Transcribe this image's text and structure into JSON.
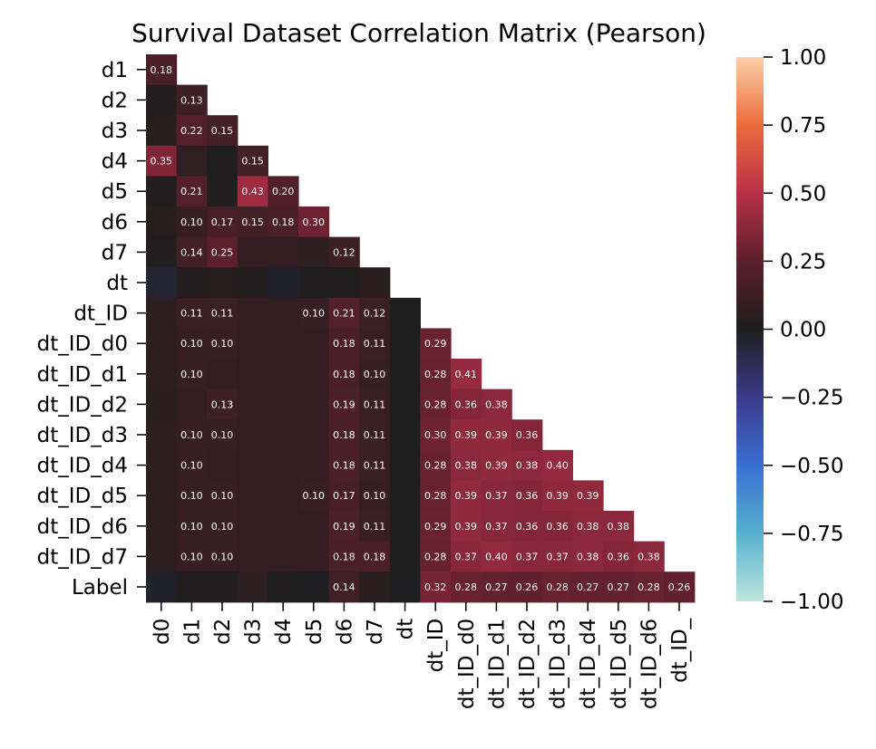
{
  "chart_data": {
    "type": "heatmap",
    "title": "Survival Dataset Correlation Matrix (Pearson)",
    "xlabel": "",
    "ylabel": "",
    "mask": "upper-triangle",
    "columns": [
      "d0",
      "d1",
      "d2",
      "d3",
      "d4",
      "d5",
      "d6",
      "d7",
      "dt",
      "dt_ID",
      "dt_ID_d0",
      "dt_ID_d1",
      "dt_ID_d2",
      "dt_ID_d3",
      "dt_ID_d4",
      "dt_ID_d5",
      "dt_ID_d6",
      "dt_ID_d7"
    ],
    "xtick_labels": [
      "d0",
      "d1",
      "d2",
      "d3",
      "d4",
      "d5",
      "d6",
      "d7",
      "dt",
      "dt_ID",
      "dt_ID_d0",
      "dt_ID_d1",
      "dt_ID_d2",
      "dt_ID_d3",
      "dt_ID_d4",
      "dt_ID_d5",
      "dt_ID_d6",
      "dt_ID_"
    ],
    "rows": [
      "d1",
      "d2",
      "d3",
      "d4",
      "d5",
      "d6",
      "d7",
      "dt",
      "dt_ID",
      "dt_ID_d0",
      "dt_ID_d1",
      "dt_ID_d2",
      "dt_ID_d3",
      "dt_ID_d4",
      "dt_ID_d5",
      "dt_ID_d6",
      "dt_ID_d7",
      "Label"
    ],
    "values": [
      [
        0.18
      ],
      [
        0.03,
        0.13
      ],
      [
        0.04,
        0.22,
        0.15
      ],
      [
        0.35,
        0.07,
        0.01,
        0.15
      ],
      [
        0.02,
        0.21,
        0.01,
        0.43,
        0.2
      ],
      [
        0.04,
        0.1,
        0.17,
        0.15,
        0.18,
        0.3
      ],
      [
        0.02,
        0.14,
        0.25,
        0.08,
        0.08,
        0.06,
        0.12
      ],
      [
        -0.05,
        0.03,
        0.04,
        0.03,
        -0.03,
        0.01,
        0.01,
        0.05
      ],
      [
        0.06,
        0.11,
        0.11,
        0.08,
        0.08,
        0.1,
        0.21,
        0.12,
        0.0
      ],
      [
        0.06,
        0.1,
        0.1,
        0.08,
        0.08,
        0.09,
        0.18,
        0.11,
        0.0,
        0.29
      ],
      [
        0.06,
        0.1,
        0.09,
        0.08,
        0.08,
        0.09,
        0.18,
        0.1,
        0.0,
        0.28,
        0.41
      ],
      [
        0.05,
        0.09,
        0.13,
        0.08,
        0.08,
        0.09,
        0.19,
        0.11,
        0.0,
        0.28,
        0.36,
        0.38
      ],
      [
        0.06,
        0.1,
        0.1,
        0.08,
        0.08,
        0.09,
        0.18,
        0.11,
        0.0,
        0.3,
        0.39,
        0.39,
        0.36
      ],
      [
        0.06,
        0.1,
        0.09,
        0.08,
        0.08,
        0.09,
        0.18,
        0.11,
        0.0,
        0.28,
        0.38,
        0.39,
        0.38,
        0.4
      ],
      [
        0.06,
        0.1,
        0.1,
        0.08,
        0.08,
        0.1,
        0.17,
        0.1,
        0.0,
        0.28,
        0.39,
        0.37,
        0.36,
        0.39,
        0.39
      ],
      [
        0.06,
        0.1,
        0.1,
        0.08,
        0.08,
        0.09,
        0.19,
        0.11,
        0.0,
        0.29,
        0.39,
        0.37,
        0.36,
        0.36,
        0.38,
        0.38
      ],
      [
        0.06,
        0.1,
        0.1,
        0.08,
        0.08,
        0.09,
        0.18,
        0.18,
        0.0,
        0.28,
        0.37,
        0.4,
        0.37,
        0.37,
        0.38,
        0.36,
        0.38
      ],
      [
        -0.03,
        0.02,
        0.02,
        0.06,
        0.01,
        -0.01,
        0.14,
        0.05,
        -0.01,
        0.32,
        0.28,
        0.27,
        0.26,
        0.28,
        0.27,
        0.27,
        0.28,
        0.26
      ]
    ],
    "annotation_threshold": 0.095,
    "colormap": "icefire",
    "colorbar": {
      "range": [
        -1.0,
        1.0
      ],
      "ticks": [
        1.0,
        0.75,
        0.5,
        0.25,
        0.0,
        -0.25,
        -0.5,
        -0.75,
        -1.0
      ],
      "tick_labels": [
        "1.00",
        "0.75",
        "0.50",
        "0.25",
        "0.00",
        "−0.25",
        "−0.50",
        "−0.75",
        "−1.00"
      ],
      "color_stops": [
        {
          "v": -1.0,
          "color": "#bde6dd"
        },
        {
          "v": -0.75,
          "color": "#55b0ce"
        },
        {
          "v": -0.5,
          "color": "#3a6ed3"
        },
        {
          "v": -0.25,
          "color": "#3a3a8a"
        },
        {
          "v": 0.0,
          "color": "#1e1e1e"
        },
        {
          "v": 0.25,
          "color": "#5c1f2c"
        },
        {
          "v": 0.5,
          "color": "#b83048"
        },
        {
          "v": 0.75,
          "color": "#eb6a3b"
        },
        {
          "v": 1.0,
          "color": "#fdcfa8"
        }
      ]
    }
  }
}
